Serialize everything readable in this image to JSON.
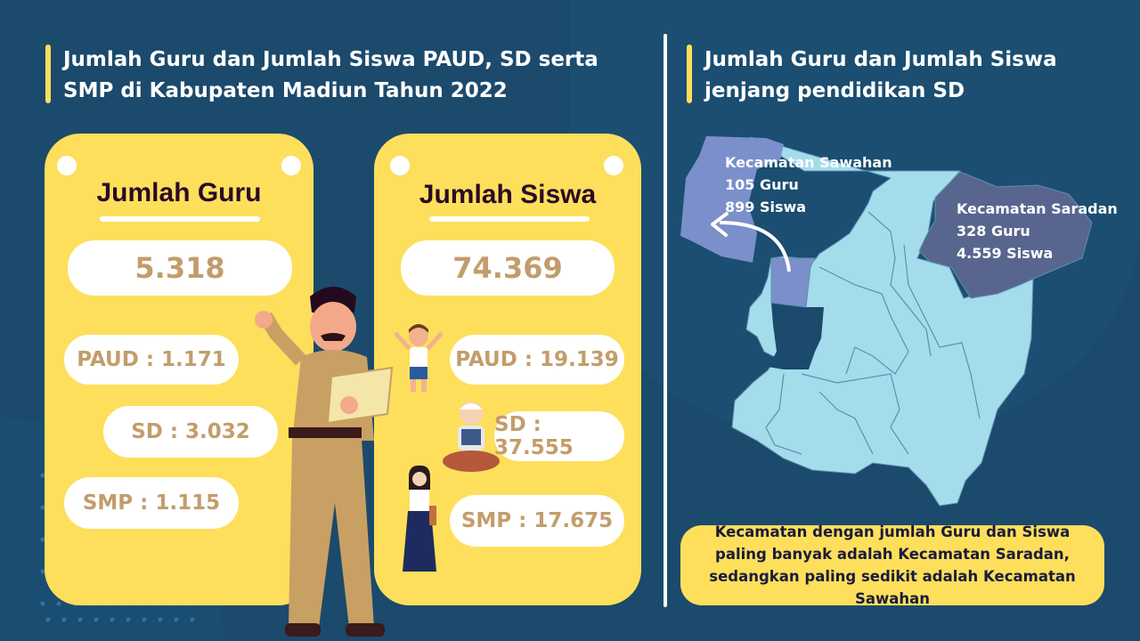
{
  "left": {
    "title": "Jumlah Guru dan Jumlah Siswa PAUD, SD serta SMP di Kabupaten Madiun Tahun 2022",
    "guru_card": {
      "heading": "Jumlah Guru",
      "total": "5.318",
      "paud": "PAUD : 1.171",
      "sd": "SD : 3.032",
      "smp": "SMP : 1.115"
    },
    "siswa_card": {
      "heading": "Jumlah Siswa",
      "total": "74.369",
      "paud": "PAUD : 19.139",
      "sd": "SD : 37.555",
      "smp": "SMP : 17.675"
    }
  },
  "right": {
    "title": "Jumlah Guru dan Jumlah Siswa jenjang pendidikan SD",
    "sawahan": {
      "name": "Kecamatan Sawahan",
      "guru": "105 Guru",
      "siswa": "899 Siswa"
    },
    "saradan": {
      "name": "Kecamatan Saradan",
      "guru": "328 Guru",
      "siswa": "4.559 Siswa"
    },
    "note": "Kecamatan dengan jumlah Guru dan Siswa paling banyak adalah Kecamatan Saradan, sedangkan paling sedikit adalah Kecamatan Sawahan"
  },
  "colors": {
    "background": "#1c4a6c",
    "card": "#fddf5c",
    "number": "#c29d6b",
    "map": "#a4dcec",
    "sawahan": "#7b8fcb",
    "saradan": "#58658f"
  }
}
